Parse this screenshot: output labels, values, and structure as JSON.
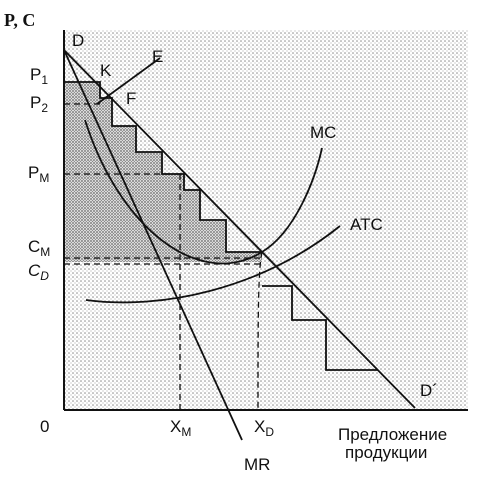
{
  "axes": {
    "y_label": "P, C",
    "origin_label": "0",
    "x_label_line1": "Предложение",
    "x_label_line2": "продукции"
  },
  "price_labels": {
    "p1": {
      "base": "P",
      "sub": "1"
    },
    "p2": {
      "base": "P",
      "sub": "2"
    },
    "pm": {
      "base": "P",
      "sub": "M"
    },
    "cm": {
      "base": "C",
      "sub": "M"
    },
    "cd": {
      "base": "C",
      "sub": "D"
    }
  },
  "quantity_labels": {
    "xm": {
      "base": "X",
      "sub": "M"
    },
    "xd": {
      "base": "X",
      "sub": "D"
    }
  },
  "curve_labels": {
    "demand_top": "D",
    "demand_bottom": "D´",
    "mc": "MC",
    "atc": "ATC",
    "mr": "MR",
    "k": "K",
    "e": "E",
    "f": "F"
  },
  "colors": {
    "background_dots": "#9a9a9a",
    "monopoly_area": "#7a7a7a",
    "line": "#111111"
  }
}
